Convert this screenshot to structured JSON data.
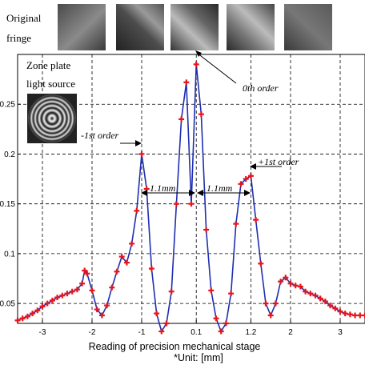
{
  "header": {
    "fringe_label_line1": "Original",
    "fringe_label_line2": "fringe",
    "source_label_line1": "Zone plate",
    "source_label_line2": "light source"
  },
  "chart_data": {
    "type": "scatter",
    "xlabel": "Reading of  precision mechanical stage",
    "unit_note": "*Unit: [mm]",
    "xlim": [
      -3.5,
      3.5
    ],
    "ylim": [
      0.03,
      0.3
    ],
    "x_ticks": [
      -3,
      -2,
      -1,
      0.1,
      1.2,
      2,
      3
    ],
    "x_tick_labels": [
      "-3",
      "-2",
      "-1",
      "0.1",
      "1.2",
      "2",
      "3"
    ],
    "y_ticks": [
      0.05,
      0.1,
      0.15,
      0.2,
      0.25
    ],
    "y_tick_labels": [
      "0.05",
      "0.1",
      "0.15",
      "0.2",
      "0.25"
    ],
    "grid": true,
    "series": [
      {
        "line_color": "#1f2fb0",
        "marker_color": "#e8141b",
        "x": [
          -3.5,
          -3.4,
          -3.3,
          -3.2,
          -3.1,
          -3.0,
          -2.9,
          -2.8,
          -2.7,
          -2.6,
          -2.5,
          -2.4,
          -2.3,
          -2.2,
          -2.15,
          -2.1,
          -2.0,
          -1.9,
          -1.8,
          -1.7,
          -1.6,
          -1.5,
          -1.4,
          -1.3,
          -1.2,
          -1.1,
          -1.0,
          -0.9,
          -0.8,
          -0.7,
          -0.6,
          -0.5,
          -0.4,
          -0.3,
          -0.2,
          -0.1,
          0.0,
          0.1,
          0.2,
          0.3,
          0.4,
          0.5,
          0.6,
          0.7,
          0.8,
          0.9,
          1.0,
          1.1,
          1.2,
          1.3,
          1.4,
          1.5,
          1.6,
          1.7,
          1.8,
          1.9,
          2.0,
          2.1,
          2.2,
          2.3,
          2.4,
          2.5,
          2.6,
          2.7,
          2.8,
          2.9,
          3.0,
          3.1,
          3.2,
          3.3,
          3.4,
          3.5
        ],
        "y": [
          0.033,
          0.035,
          0.037,
          0.04,
          0.043,
          0.047,
          0.05,
          0.053,
          0.056,
          0.058,
          0.06,
          0.062,
          0.064,
          0.07,
          0.083,
          0.08,
          0.063,
          0.044,
          0.038,
          0.048,
          0.066,
          0.082,
          0.097,
          0.091,
          0.11,
          0.143,
          0.2,
          0.165,
          0.085,
          0.04,
          0.022,
          0.03,
          0.062,
          0.15,
          0.235,
          0.272,
          0.15,
          0.29,
          0.24,
          0.124,
          0.063,
          0.035,
          0.022,
          0.03,
          0.06,
          0.13,
          0.17,
          0.175,
          0.178,
          0.134,
          0.09,
          0.05,
          0.038,
          0.05,
          0.072,
          0.076,
          0.07,
          0.068,
          0.067,
          0.062,
          0.06,
          0.058,
          0.055,
          0.052,
          0.048,
          0.045,
          0.042,
          0.04,
          0.039,
          0.038,
          0.038,
          0.038
        ]
      }
    ],
    "annotations": [
      {
        "text": "0th order"
      },
      {
        "text": "-1st order"
      },
      {
        "text": "+1st order"
      },
      {
        "text": "1.1mm"
      },
      {
        "text": "1.1mm"
      }
    ]
  }
}
